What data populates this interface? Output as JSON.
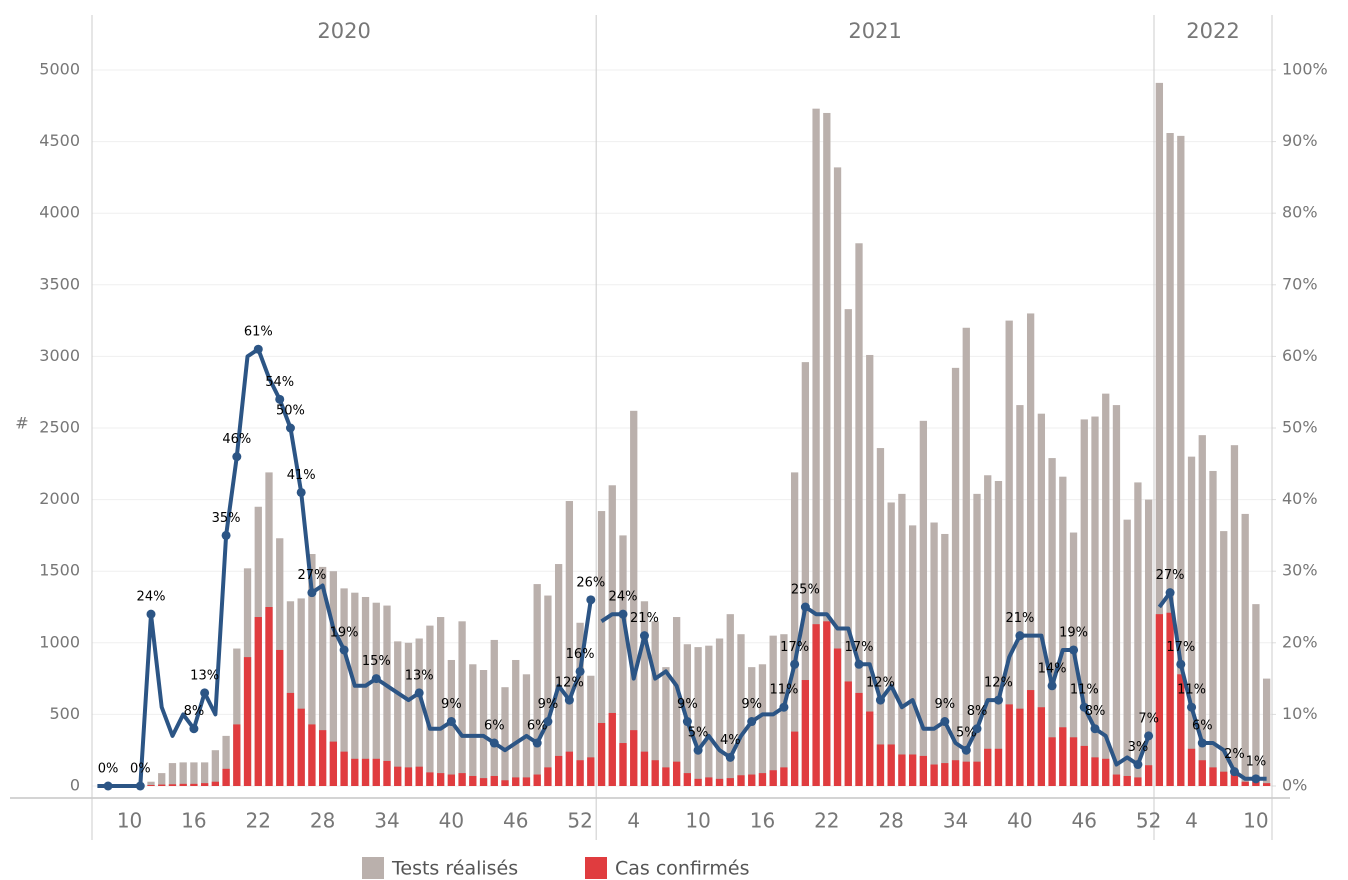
{
  "chart_data": {
    "type": "combo",
    "y_label": "#",
    "groups": [
      {
        "label": "2020",
        "size": 47
      },
      {
        "label": "2021",
        "size": 52
      },
      {
        "label": "2022",
        "size": 11
      }
    ],
    "categories": [
      null,
      null,
      null,
      "10",
      null,
      null,
      null,
      null,
      null,
      "16",
      null,
      null,
      null,
      null,
      null,
      "22",
      null,
      null,
      null,
      null,
      null,
      "28",
      null,
      null,
      null,
      null,
      null,
      "34",
      null,
      null,
      null,
      null,
      null,
      "40",
      null,
      null,
      null,
      null,
      null,
      "46",
      null,
      null,
      null,
      null,
      null,
      "52",
      null,
      null,
      null,
      null,
      "4",
      null,
      null,
      null,
      null,
      null,
      "10",
      null,
      null,
      null,
      null,
      null,
      "16",
      null,
      null,
      null,
      null,
      null,
      "22",
      null,
      null,
      null,
      null,
      null,
      "28",
      null,
      null,
      null,
      null,
      null,
      "34",
      null,
      null,
      null,
      null,
      null,
      "40",
      null,
      null,
      null,
      null,
      null,
      "46",
      null,
      null,
      null,
      null,
      null,
      "52",
      null,
      null,
      null,
      "4",
      null,
      null,
      null,
      null,
      null,
      "10",
      null
    ],
    "series": [
      {
        "name": "Tests réalisés",
        "color": "#bab0ac",
        "values": [
          0,
          0,
          0,
          0,
          20,
          30,
          90,
          160,
          165,
          165,
          165,
          250,
          350,
          960,
          1520,
          1950,
          2190,
          1730,
          1290,
          1310,
          1620,
          1530,
          1500,
          1380,
          1350,
          1320,
          1280,
          1260,
          1010,
          1000,
          1030,
          1120,
          1180,
          880,
          1150,
          850,
          810,
          1020,
          690,
          880,
          780,
          1410,
          1330,
          1550,
          1990,
          1140,
          770,
          1920,
          2100,
          1750,
          2620,
          1290,
          1150,
          830,
          1180,
          990,
          970,
          980,
          1030,
          1200,
          1060,
          830,
          850,
          1050,
          1060,
          2190,
          2960,
          4730,
          4700,
          4320,
          3330,
          3790,
          3010,
          2360,
          1980,
          2040,
          1820,
          2550,
          1840,
          1760,
          2920,
          3200,
          2040,
          2170,
          2130,
          3250,
          2660,
          3300,
          2600,
          2290,
          2160,
          1770,
          2560,
          2580,
          2740,
          2660,
          1860,
          2120,
          2000,
          4910,
          4560,
          4540,
          2300,
          2450,
          2200,
          1780,
          2380,
          1900,
          1270,
          750
        ]
      },
      {
        "name": "Cas confirmés",
        "color": "#e03c3f",
        "values": [
          0,
          0,
          0,
          0,
          0,
          7,
          10,
          12,
          15,
          15,
          20,
          30,
          120,
          430,
          900,
          1180,
          1250,
          950,
          650,
          540,
          430,
          390,
          310,
          240,
          190,
          190,
          190,
          175,
          135,
          130,
          135,
          95,
          90,
          80,
          90,
          70,
          55,
          70,
          40,
          60,
          60,
          80,
          130,
          210,
          240,
          180,
          200,
          440,
          510,
          300,
          390,
          240,
          180,
          130,
          170,
          90,
          50,
          60,
          50,
          55,
          75,
          80,
          90,
          110,
          130,
          380,
          740,
          1130,
          1150,
          960,
          730,
          650,
          520,
          290,
          290,
          220,
          220,
          210,
          150,
          160,
          180,
          170,
          170,
          260,
          260,
          570,
          540,
          670,
          550,
          340,
          410,
          340,
          280,
          200,
          190,
          80,
          70,
          60,
          145,
          1200,
          1210,
          780,
          260,
          180,
          130,
          100,
          80,
          30,
          30,
          20
        ]
      }
    ],
    "line": {
      "color": "#2c5585",
      "axis": "y2",
      "values": [
        0,
        0,
        0,
        0,
        0,
        24,
        11,
        7,
        10,
        8,
        13,
        10,
        35,
        46,
        60,
        61,
        57,
        54,
        50,
        41,
        27,
        28,
        22,
        19,
        14,
        14,
        15,
        14,
        13,
        12,
        13,
        8,
        8,
        9,
        7,
        7,
        7,
        6,
        5,
        6,
        7,
        6,
        9,
        14,
        12,
        16,
        26,
        23,
        24,
        24,
        15,
        21,
        15,
        16,
        14,
        9,
        5,
        7,
        5,
        4,
        7,
        9,
        10,
        10,
        11,
        17,
        25,
        24,
        24,
        22,
        22,
        17,
        17,
        12,
        14,
        11,
        12,
        8,
        8,
        9,
        6,
        5,
        8,
        12,
        12,
        18,
        21,
        21,
        21,
        14,
        19,
        19,
        11,
        8,
        7,
        3,
        4,
        3,
        7,
        25,
        27,
        17,
        11,
        6,
        6,
        5,
        2,
        1,
        1,
        1
      ],
      "value_labels": [
        null,
        "0%",
        null,
        null,
        "0%",
        "24%",
        null,
        null,
        null,
        "8%",
        "13%",
        null,
        "35%",
        "46%",
        null,
        "61%",
        null,
        "54%",
        "50%",
        "41%",
        "27%",
        null,
        null,
        "19%",
        null,
        null,
        "15%",
        null,
        null,
        null,
        "13%",
        null,
        null,
        "9%",
        null,
        null,
        null,
        "6%",
        null,
        null,
        null,
        "6%",
        "9%",
        null,
        "12%",
        "16%",
        "26%",
        null,
        null,
        "24%",
        null,
        "21%",
        null,
        null,
        null,
        "9%",
        "5%",
        null,
        null,
        "4%",
        null,
        "9%",
        null,
        null,
        "11%",
        "17%",
        "25%",
        null,
        null,
        null,
        null,
        "17%",
        null,
        "12%",
        null,
        null,
        null,
        null,
        null,
        "9%",
        null,
        "5%",
        "8%",
        null,
        "12%",
        null,
        "21%",
        null,
        null,
        "14%",
        null,
        "19%",
        "11%",
        "8%",
        null,
        null,
        null,
        "3%",
        "7%",
        null,
        "27%",
        "17%",
        "11%",
        "6%",
        null,
        null,
        "2%",
        null,
        "1%",
        null
      ]
    },
    "ylim": [
      0,
      5000
    ],
    "yticks": [
      0,
      500,
      1000,
      1500,
      2000,
      2500,
      3000,
      3500,
      4000,
      4500,
      5000
    ],
    "y2lim": [
      0,
      100
    ],
    "y2ticks": [
      {
        "value": 0,
        "label": "0%"
      },
      {
        "value": 10,
        "label": "10%"
      },
      {
        "value": 20,
        "label": "20%"
      },
      {
        "value": 30,
        "label": "30%"
      },
      {
        "value": 40,
        "label": "40%"
      },
      {
        "value": 50,
        "label": "50%"
      },
      {
        "value": 60,
        "label": "60%"
      },
      {
        "value": 70,
        "label": "70%"
      },
      {
        "value": 80,
        "label": "80%"
      },
      {
        "value": 90,
        "label": "90%"
      },
      {
        "value": 100,
        "label": "100%"
      }
    ],
    "grid": true
  }
}
